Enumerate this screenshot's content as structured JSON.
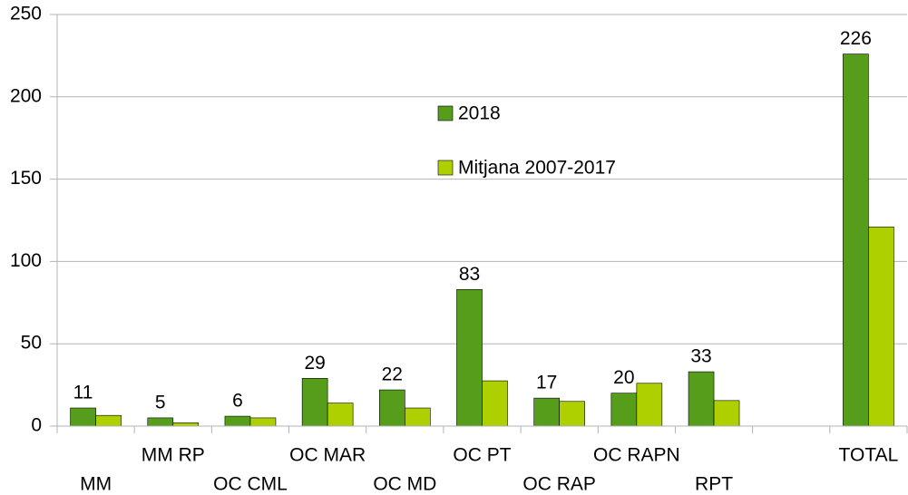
{
  "chart_data": {
    "type": "bar",
    "categories": [
      "MM",
      "MM RP",
      "OC CML",
      "OC MAR",
      "OC MD",
      "OC PT",
      "OC RAP",
      "OC RAPN",
      "RPT",
      null,
      "TOTAL"
    ],
    "series": [
      {
        "name": "2018",
        "color": "#579d1c",
        "values": [
          11,
          5,
          6,
          29,
          22,
          83,
          17,
          20,
          33,
          null,
          226
        ]
      },
      {
        "name": "Mitjana 2007-2017",
        "color": "#aecf00",
        "values": [
          6.5,
          2,
          5,
          14,
          11,
          27.5,
          15,
          26,
          15.5,
          null,
          121
        ]
      }
    ],
    "ylim": [
      0,
      250
    ],
    "yticks": [
      0,
      50,
      100,
      150,
      200,
      250
    ],
    "grid": true,
    "legend": "center"
  }
}
